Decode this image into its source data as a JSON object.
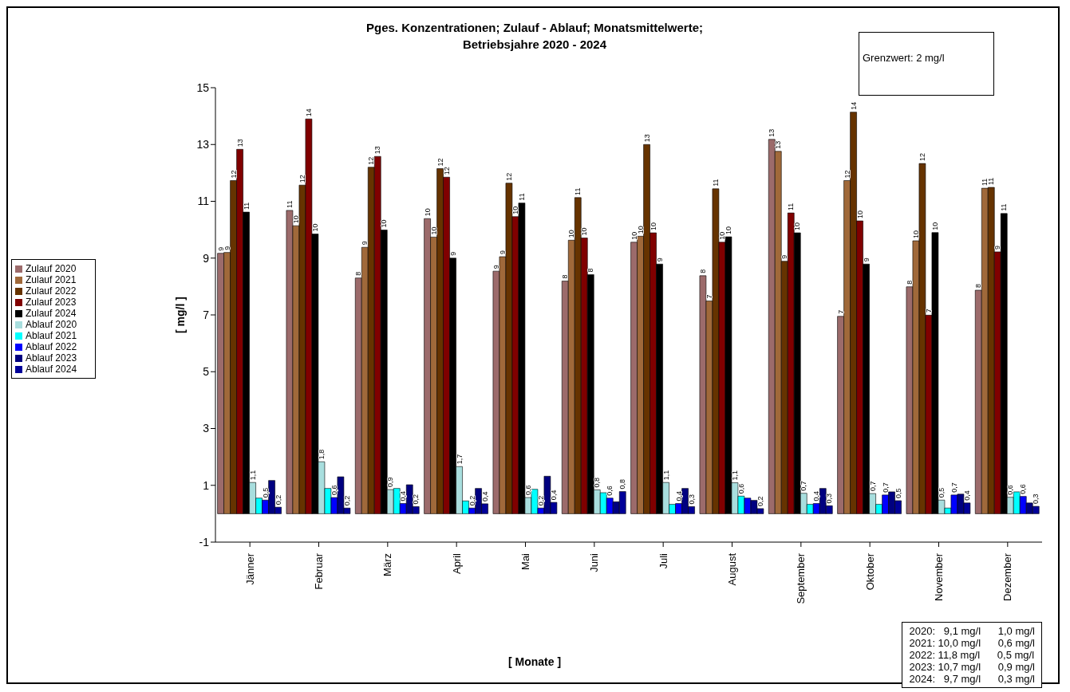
{
  "chart_data": {
    "type": "bar",
    "title": "Pges. Konzentrationen; Zulauf - Ablauf; Monatsmittelwerte;",
    "subtitle": "Betriebsjahre 2020 - 2024",
    "xlabel": "[ Monate ]",
    "ylabel": "[ mg/l ]",
    "categories": [
      "Jänner",
      "Februar",
      "März",
      "April",
      "Mai",
      "Juni",
      "Juli",
      "August",
      "September",
      "Oktober",
      "November",
      "Dezember"
    ],
    "series": [
      {
        "name": "Zulauf 2020",
        "color": "#9c6b6b",
        "values": [
          9.17,
          10.68,
          8.3,
          10.39,
          8.54,
          8.19,
          9.56,
          8.38,
          13.18,
          6.95,
          7.99,
          7.87
        ],
        "value_labels": [
          "9",
          "11",
          "8",
          "10",
          "9",
          "8",
          "10",
          "8",
          "13",
          "7",
          "8",
          "8"
        ]
      },
      {
        "name": "Zulauf 2021",
        "color": "#a0693a",
        "values": [
          9.2,
          10.14,
          9.38,
          9.74,
          9.05,
          9.63,
          9.77,
          7.49,
          12.76,
          11.73,
          9.61,
          11.46
        ],
        "value_labels": [
          "9",
          "10",
          "9",
          "10",
          "9",
          "10",
          "10",
          "7",
          "13",
          "12",
          "10",
          "11"
        ]
      },
      {
        "name": "Zulauf 2022",
        "color": "#663300",
        "values": [
          11.73,
          11.57,
          12.2,
          12.15,
          11.64,
          11.13,
          13.0,
          11.44,
          8.89,
          14.14,
          12.33,
          11.49
        ],
        "value_labels": [
          "12",
          "12",
          "12",
          "12",
          "12",
          "11",
          "13",
          "11",
          "9",
          "14",
          "12",
          "11"
        ]
      },
      {
        "name": "Zulauf 2023",
        "color": "#800000",
        "values": [
          12.83,
          13.9,
          12.58,
          11.85,
          10.46,
          9.71,
          9.89,
          9.56,
          10.59,
          10.31,
          6.99,
          9.22
        ],
        "value_labels": [
          "13",
          "14",
          "13",
          "12",
          "10",
          "10",
          "10",
          "10",
          "11",
          "10",
          "7",
          "9"
        ]
      },
      {
        "name": "Zulauf 2024",
        "color": "#000000",
        "values": [
          10.62,
          9.85,
          9.99,
          9.0,
          10.94,
          8.42,
          8.79,
          9.75,
          9.89,
          8.79,
          9.9,
          10.57
        ],
        "value_labels": [
          "11",
          "10",
          "10",
          "9",
          "11",
          "8",
          "9",
          "10",
          "10",
          "9",
          "10",
          "11"
        ]
      },
      {
        "name": "Ablauf 2020",
        "color": "#a8dede",
        "values": [
          1.1,
          1.83,
          0.85,
          1.66,
          0.57,
          0.84,
          1.1,
          1.09,
          0.72,
          0.71,
          0.48,
          0.58
        ],
        "value_labels": [
          "1,1",
          "1,8",
          "0,9",
          "1,7",
          "0,6",
          "0,8",
          "1,1",
          "1,1",
          "0,7",
          "0,7",
          "0,5",
          "0,6"
        ]
      },
      {
        "name": "Ablauf 2021",
        "color": "#00ffff",
        "values": [
          0.55,
          0.89,
          0.89,
          0.45,
          0.86,
          0.74,
          0.33,
          0.62,
          0.33,
          0.33,
          0.2,
          0.77
        ],
        "value_labels": [
          null,
          null,
          null,
          null,
          null,
          null,
          null,
          "0,6",
          null,
          null,
          null,
          null
        ]
      },
      {
        "name": "Ablauf 2022",
        "color": "#0000ff",
        "values": [
          0.48,
          0.57,
          0.36,
          0.2,
          0.2,
          0.55,
          0.36,
          0.55,
          0.36,
          0.66,
          0.66,
          0.61
        ],
        "value_labels": [
          "0,5",
          "0,6",
          "0,4",
          "0,2",
          "0,2",
          "0,6",
          "0,4",
          null,
          "0,4",
          "0,7",
          "0,7",
          "0,6"
        ]
      },
      {
        "name": "Ablauf 2023",
        "color": "#000080",
        "values": [
          1.17,
          1.3,
          1.02,
          0.89,
          1.32,
          0.42,
          0.89,
          0.47,
          0.89,
          0.77,
          0.69,
          0.38
        ],
        "value_labels": [
          null,
          null,
          null,
          null,
          null,
          null,
          null,
          null,
          null,
          null,
          null,
          null
        ]
      },
      {
        "name": "Ablauf 2024",
        "color": "#000099",
        "values": [
          0.23,
          0.2,
          0.25,
          0.35,
          0.4,
          0.78,
          0.25,
          0.18,
          0.28,
          0.46,
          0.38,
          0.26
        ],
        "value_labels": [
          "0,2",
          "0,2",
          "0,2",
          "0,4",
          "0,4",
          "0,8",
          "0,3",
          "0,2",
          "0,3",
          "0,5",
          "0,4",
          "0,3"
        ]
      }
    ],
    "ylim": [
      -1,
      15
    ],
    "yticks": [
      -1,
      1,
      3,
      5,
      7,
      9,
      11,
      13,
      15
    ],
    "legend": "left",
    "annotations": [
      "Grenzwert: 2 mg/l",
      "2020:   9,1 mg/l      1,0 mg/l",
      "2021: 10,0 mg/l      0,6 mg/l",
      "2022: 11,8 mg/l      0,5 mg/l",
      "2023: 10,7 mg/l      0,9 mg/l",
      "2024:   9,7 mg/l      0,3 mg/l"
    ]
  }
}
